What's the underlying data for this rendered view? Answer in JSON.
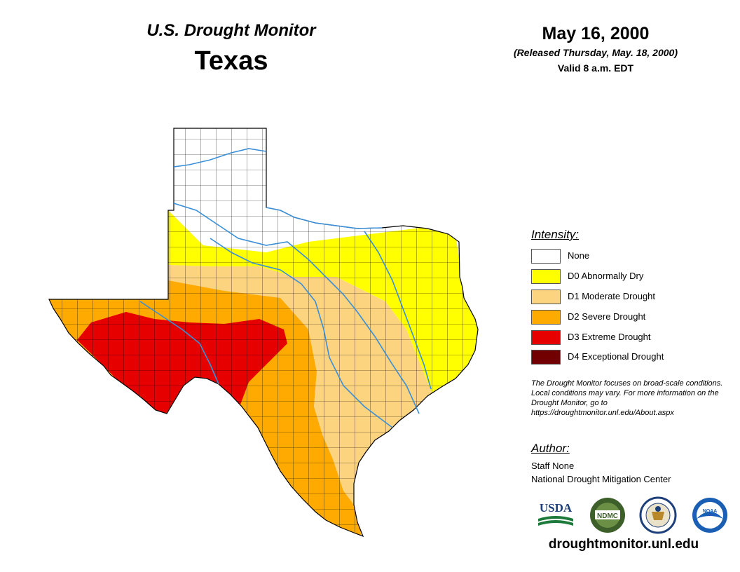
{
  "header": {
    "title": "U.S. Drought Monitor",
    "state": "Texas",
    "date": "May 16, 2000",
    "released": "(Released Thursday, May. 18, 2000)",
    "valid": "Valid 8 a.m. EDT"
  },
  "legend": {
    "title": "Intensity:",
    "items": [
      {
        "label": "None",
        "color": "#ffffff"
      },
      {
        "label": "D0 Abnormally Dry",
        "color": "#ffff00"
      },
      {
        "label": "D1 Moderate Drought",
        "color": "#fcd37f"
      },
      {
        "label": "D2 Severe Drought",
        "color": "#ffaa00"
      },
      {
        "label": "D3 Extreme Drought",
        "color": "#e60000"
      },
      {
        "label": "D4 Exceptional Drought",
        "color": "#730000"
      }
    ]
  },
  "disclaimer": "The Drought Monitor focuses on broad-scale conditions. Local conditions may vary. For more information on the Drought Monitor, go to https://droughtmonitor.unl.edu/About.aspx",
  "author": {
    "title": "Author:",
    "name": "Staff None",
    "org": "National Drought Mitigation Center"
  },
  "logos": [
    {
      "name": "usda-logo",
      "text": "USDA"
    },
    {
      "name": "ndmc-logo",
      "text": "NDMC"
    },
    {
      "name": "doc-seal-logo",
      "text": ""
    },
    {
      "name": "noaa-logo",
      "text": "NOAA"
    }
  ],
  "website": "droughtmonitor.unl.edu",
  "colors": {
    "river": "#3a8fd8",
    "county_border": "#000000"
  }
}
